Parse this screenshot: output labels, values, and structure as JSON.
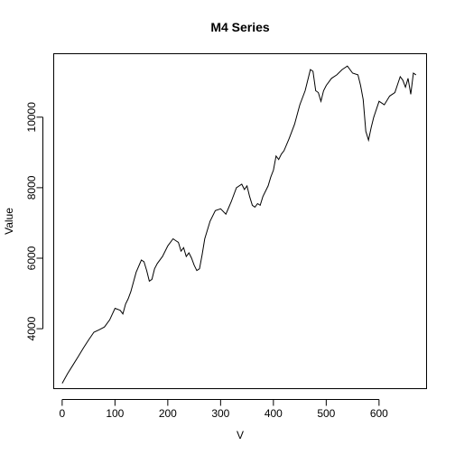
{
  "chart_data": {
    "type": "line",
    "title": "M4 Series",
    "xlabel": "V",
    "ylabel": "Value",
    "xlim": [
      -16,
      690
    ],
    "ylim": [
      2300,
      11800
    ],
    "x_ticks": [
      0,
      100,
      200,
      300,
      400,
      500,
      600
    ],
    "y_ticks": [
      4000,
      6000,
      8000,
      10000
    ],
    "grid": false,
    "legend": "none",
    "colors": {
      "series": "#000000",
      "axis": "#000000",
      "background": "#ffffff"
    },
    "series": [
      {
        "x": [
          0,
          10,
          20,
          30,
          40,
          50,
          60,
          70,
          80,
          90,
          100,
          105,
          110,
          115,
          120,
          125,
          130,
          140,
          150,
          155,
          160,
          165,
          170,
          175,
          180,
          190,
          200,
          210,
          215,
          220,
          225,
          230,
          235,
          240,
          245,
          250,
          255,
          260,
          265,
          270,
          280,
          290,
          300,
          310,
          320,
          330,
          340,
          345,
          350,
          355,
          360,
          365,
          370,
          375,
          380,
          390,
          395,
          400,
          405,
          410,
          415,
          420,
          430,
          440,
          450,
          460,
          470,
          475,
          480,
          485,
          490,
          495,
          500,
          510,
          520,
          530,
          540,
          550,
          560,
          565,
          570,
          575,
          580,
          585,
          590,
          600,
          610,
          620,
          630,
          640,
          645,
          650,
          655,
          660,
          665,
          670
        ],
        "y": [
          2450,
          2720,
          2960,
          3200,
          3450,
          3680,
          3900,
          3970,
          4050,
          4250,
          4580,
          4550,
          4520,
          4420,
          4700,
          4850,
          5050,
          5600,
          5950,
          5900,
          5650,
          5350,
          5400,
          5700,
          5850,
          6050,
          6350,
          6550,
          6500,
          6450,
          6200,
          6300,
          6050,
          6150,
          6000,
          5800,
          5650,
          5700,
          6100,
          6550,
          7050,
          7350,
          7400,
          7250,
          7600,
          8000,
          8100,
          7950,
          8050,
          7750,
          7500,
          7450,
          7550,
          7500,
          7750,
          8050,
          8300,
          8500,
          8900,
          8800,
          8950,
          9050,
          9400,
          9800,
          10350,
          10750,
          11350,
          11300,
          10750,
          10700,
          10450,
          10750,
          10900,
          11100,
          11200,
          11350,
          11450,
          11250,
          11200,
          10900,
          10500,
          9600,
          9350,
          9700,
          10000,
          10450,
          10350,
          10600,
          10700,
          11150,
          11050,
          10850,
          11100,
          10650,
          11250,
          11200
        ]
      }
    ]
  }
}
